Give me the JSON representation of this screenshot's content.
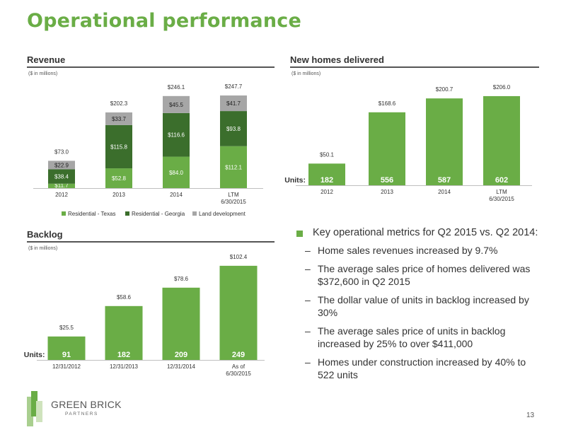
{
  "title": "Operational performance",
  "page_number": "13",
  "logo": {
    "line1": "GREEN BRICK",
    "line2": "PARTNERS"
  },
  "colors": {
    "accent": "#6aad46",
    "texas": "#6aad46",
    "georgia": "#3b6e2c",
    "land": "#a6a6a6"
  },
  "revenue": {
    "heading": "Revenue",
    "units": "($ in millions)"
  },
  "homes": {
    "heading": "New homes delivered",
    "units": "($ in millions)"
  },
  "backlog": {
    "heading": "Backlog",
    "units": "($ in millions)"
  },
  "chart_data": [
    {
      "id": "revenue",
      "type": "bar",
      "stacked": true,
      "title": "Revenue",
      "categories": [
        "2012",
        "2013",
        "2014",
        "LTM\n6/30/2015"
      ],
      "series": [
        {
          "name": "Residential - Texas",
          "values": [
            11.7,
            52.8,
            84.0,
            112.1
          ],
          "labels": [
            "$11.7",
            "$52.8",
            "$84.0",
            "$112.1"
          ],
          "color": "#6aad46"
        },
        {
          "name": "Residential - Georgia",
          "values": [
            38.4,
            115.8,
            116.6,
            93.8
          ],
          "labels": [
            "$38.4",
            "$115.8",
            "$116.6",
            "$93.8"
          ],
          "color": "#3b6e2c"
        },
        {
          "name": "Land development",
          "values": [
            22.9,
            33.7,
            45.5,
            41.7
          ],
          "labels": [
            "$22.9",
            "$33.7",
            "$45.5",
            "$41.7"
          ],
          "color": "#a6a6a6"
        }
      ],
      "totals": [
        73.0,
        202.3,
        246.1,
        247.7
      ],
      "total_labels": [
        "$73.0",
        "$202.3",
        "$246.1",
        "$247.7"
      ],
      "legend": "bottom",
      "grid": false
    },
    {
      "id": "homes",
      "type": "bar",
      "title": "New homes delivered",
      "categories": [
        "2012",
        "2013",
        "2014",
        "LTM\n6/30/2015"
      ],
      "values": [
        50.1,
        168.6,
        200.7,
        206.0
      ],
      "value_labels": [
        "$50.1",
        "$168.6",
        "$200.7",
        "$206.0"
      ],
      "units_label": "Units:",
      "units": [
        "182",
        "556",
        "587",
        "602"
      ],
      "color": "#6aad46",
      "grid": false
    },
    {
      "id": "backlog",
      "type": "bar",
      "title": "Backlog",
      "categories": [
        "12/31/2012",
        "12/31/2013",
        "12/31/2014",
        "As of\n6/30/2015"
      ],
      "values": [
        25.5,
        58.6,
        78.6,
        102.4
      ],
      "value_labels": [
        "$25.5",
        "$58.6",
        "$78.6",
        "$102.4"
      ],
      "units_label": "Units:",
      "units": [
        "91",
        "182",
        "209",
        "249"
      ],
      "color": "#6aad46",
      "grid": false
    }
  ],
  "bullets": {
    "main": "Key operational metrics for Q2 2015 vs. Q2 2014:",
    "dash": "–",
    "items": [
      "Home sales revenues increased by 9.7%",
      "The average sales price of homes delivered was $372,600 in Q2 2015",
      "The dollar value of units in backlog increased by 30%",
      "The average sales price of units in backlog increased by 25% to over $411,000",
      "Homes under construction increased by 40% to 522 units"
    ]
  }
}
